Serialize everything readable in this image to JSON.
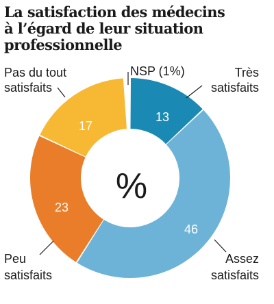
{
  "chart_data": {
    "type": "pie",
    "variant": "donut",
    "title_lines": [
      "La satisfaction des médecins",
      "à l’égard de leur situation",
      "professionnelle"
    ],
    "center_label": "%",
    "slices": [
      {
        "value_label": "13",
        "value": 13,
        "label_lines": [
          "Très",
          "satisfaits"
        ],
        "color": "#1a8ab5"
      },
      {
        "value_label": "46",
        "value": 46,
        "label_lines": [
          "Assez",
          "satisfaits"
        ],
        "color": "#6db3d8"
      },
      {
        "value_label": "23",
        "value": 23,
        "label_lines": [
          "Peu",
          "satisfaits"
        ],
        "color": "#ea7d2a"
      },
      {
        "value_label": "17",
        "value": 17,
        "label_lines": [
          "Pas du tout",
          "satisfaits"
        ],
        "color": "#f7b934"
      },
      {
        "value_label": "",
        "value": 1,
        "label_lines": [
          "NSP (1%)"
        ],
        "color": "#ffffff"
      }
    ]
  }
}
